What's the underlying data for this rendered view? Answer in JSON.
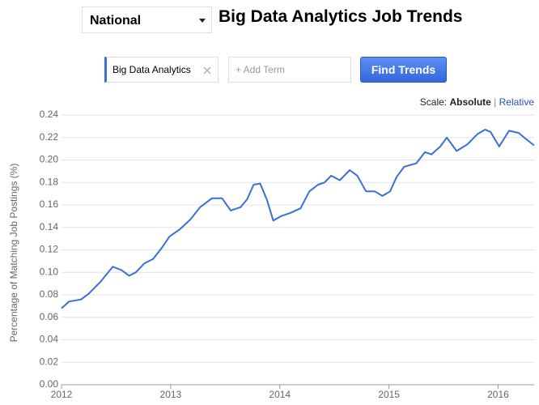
{
  "header": {
    "location": "National",
    "title": "Big Data Analytics Job Trends"
  },
  "search": {
    "term": "Big Data Analytics",
    "add_term": "+ Add Term",
    "button": "Find Trends"
  },
  "scale": {
    "label": "Scale:",
    "selected": "Absolute",
    "separator": "|",
    "other": "Relative"
  },
  "chart_data": {
    "type": "line",
    "ylabel": "Percentage of Matching Job Postings (%)",
    "color": "#3a6fd6",
    "grid": true,
    "x": [
      2012.0,
      2012.07,
      2012.18,
      2012.25,
      2012.36,
      2012.47,
      2012.55,
      2012.62,
      2012.68,
      2012.76,
      2012.84,
      2012.92,
      2012.99,
      2013.08,
      2013.18,
      2013.27,
      2013.38,
      2013.47,
      2013.55,
      2013.64,
      2013.7,
      2013.76,
      2013.82,
      2013.88,
      2013.94,
      2014.01,
      2014.1,
      2014.19,
      2014.27,
      2014.35,
      2014.41,
      2014.47,
      2014.55,
      2014.64,
      2014.71,
      2014.79,
      2014.87,
      2014.94,
      2015.01,
      2015.07,
      2015.14,
      2015.25,
      2015.33,
      2015.39,
      2015.47,
      2015.53,
      2015.62,
      2015.72,
      2015.81,
      2015.88,
      2015.93,
      2016.01,
      2016.1,
      2016.19,
      2016.25,
      2016.33
    ],
    "values": [
      0.068,
      0.074,
      0.076,
      0.081,
      0.092,
      0.105,
      0.102,
      0.097,
      0.1,
      0.108,
      0.112,
      0.122,
      0.132,
      0.138,
      0.147,
      0.158,
      0.166,
      0.166,
      0.155,
      0.158,
      0.165,
      0.178,
      0.179,
      0.165,
      0.146,
      0.15,
      0.153,
      0.157,
      0.172,
      0.178,
      0.18,
      0.186,
      0.182,
      0.191,
      0.186,
      0.172,
      0.172,
      0.168,
      0.172,
      0.185,
      0.194,
      0.197,
      0.207,
      0.205,
      0.212,
      0.22,
      0.208,
      0.214,
      0.223,
      0.227,
      0.225,
      0.212,
      0.226,
      0.224,
      0.219,
      0.213
    ],
    "xlim": [
      2012,
      2016.33
    ],
    "xticks": [
      2012,
      2013,
      2014,
      2015,
      2016
    ],
    "ylim": [
      0,
      0.24
    ],
    "yticks": [
      {
        "value": 0,
        "label": "0.00"
      },
      0.02,
      0.04,
      0.06,
      0.08,
      {
        "value": 0.1,
        "label": "0.10"
      },
      0.12,
      0.14,
      0.16,
      0.18,
      {
        "value": 0.2,
        "label": "0.20"
      },
      0.22,
      0.24
    ]
  }
}
